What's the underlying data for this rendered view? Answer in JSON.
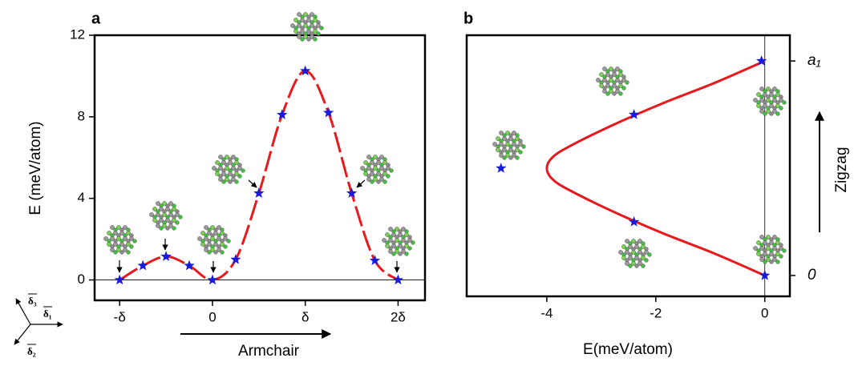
{
  "chart_data": [
    {
      "type": "line",
      "panel_label": "a",
      "ylabel": "E (meV/atom)",
      "xlabel": "Armchair",
      "xlim": [
        -1.27,
        2.29
      ],
      "xticks": [
        {
          "value": -1,
          "label": "-δ"
        },
        0,
        {
          "value": 1,
          "label": "δ"
        },
        {
          "value": 2,
          "label": "2δ"
        }
      ],
      "ylim": [
        -1,
        12
      ],
      "yticks": [
        0,
        4,
        8,
        12
      ],
      "series": [
        {
          "color": "#e8191d",
          "marker_color": "#1a1adb",
          "dash": true,
          "x": [
            -1,
            -0.75,
            -0.5,
            -0.25,
            0,
            0.25,
            0.5,
            0.75,
            1,
            1.25,
            1.5,
            1.75,
            2
          ],
          "values": [
            0,
            0.7,
            1.15,
            0.7,
            0,
            1.0,
            4.25,
            8.1,
            10.25,
            8.2,
            4.25,
            0.95,
            0
          ]
        }
      ]
    },
    {
      "type": "line",
      "panel_label": "b",
      "xlabel": "E(meV/atom)",
      "ylabel": "Zigzag",
      "xlim": [
        -5.47,
        0.46
      ],
      "xticks": [
        -4,
        -2,
        0
      ],
      "ylim": [
        -0.097,
        1.12
      ],
      "yticks": [
        0,
        {
          "value": 1,
          "label": "a₁"
        }
      ],
      "series": [
        {
          "color": "#e8191d",
          "dash": false,
          "x": [
            0,
            -0.9,
            -1.9,
            -2.8,
            -3.6,
            -3.9,
            -4.0,
            -3.9,
            -3.6,
            -2.8,
            -1.9,
            -0.9,
            0
          ],
          "values": [
            0,
            0.1,
            0.2,
            0.3,
            0.4,
            0.45,
            0.5,
            0.55,
            0.6,
            0.7,
            0.8,
            0.9,
            1
          ]
        },
        {
          "marker_color": "#1a1adb",
          "x": [
            0,
            -2.4,
            -2.4,
            -0.06,
            -4.84
          ],
          "values": [
            0,
            0.25,
            0.75,
            1,
            0.5
          ]
        }
      ]
    }
  ],
  "vectors": [
    "δ₃",
    "δ₁",
    "δ₂"
  ]
}
